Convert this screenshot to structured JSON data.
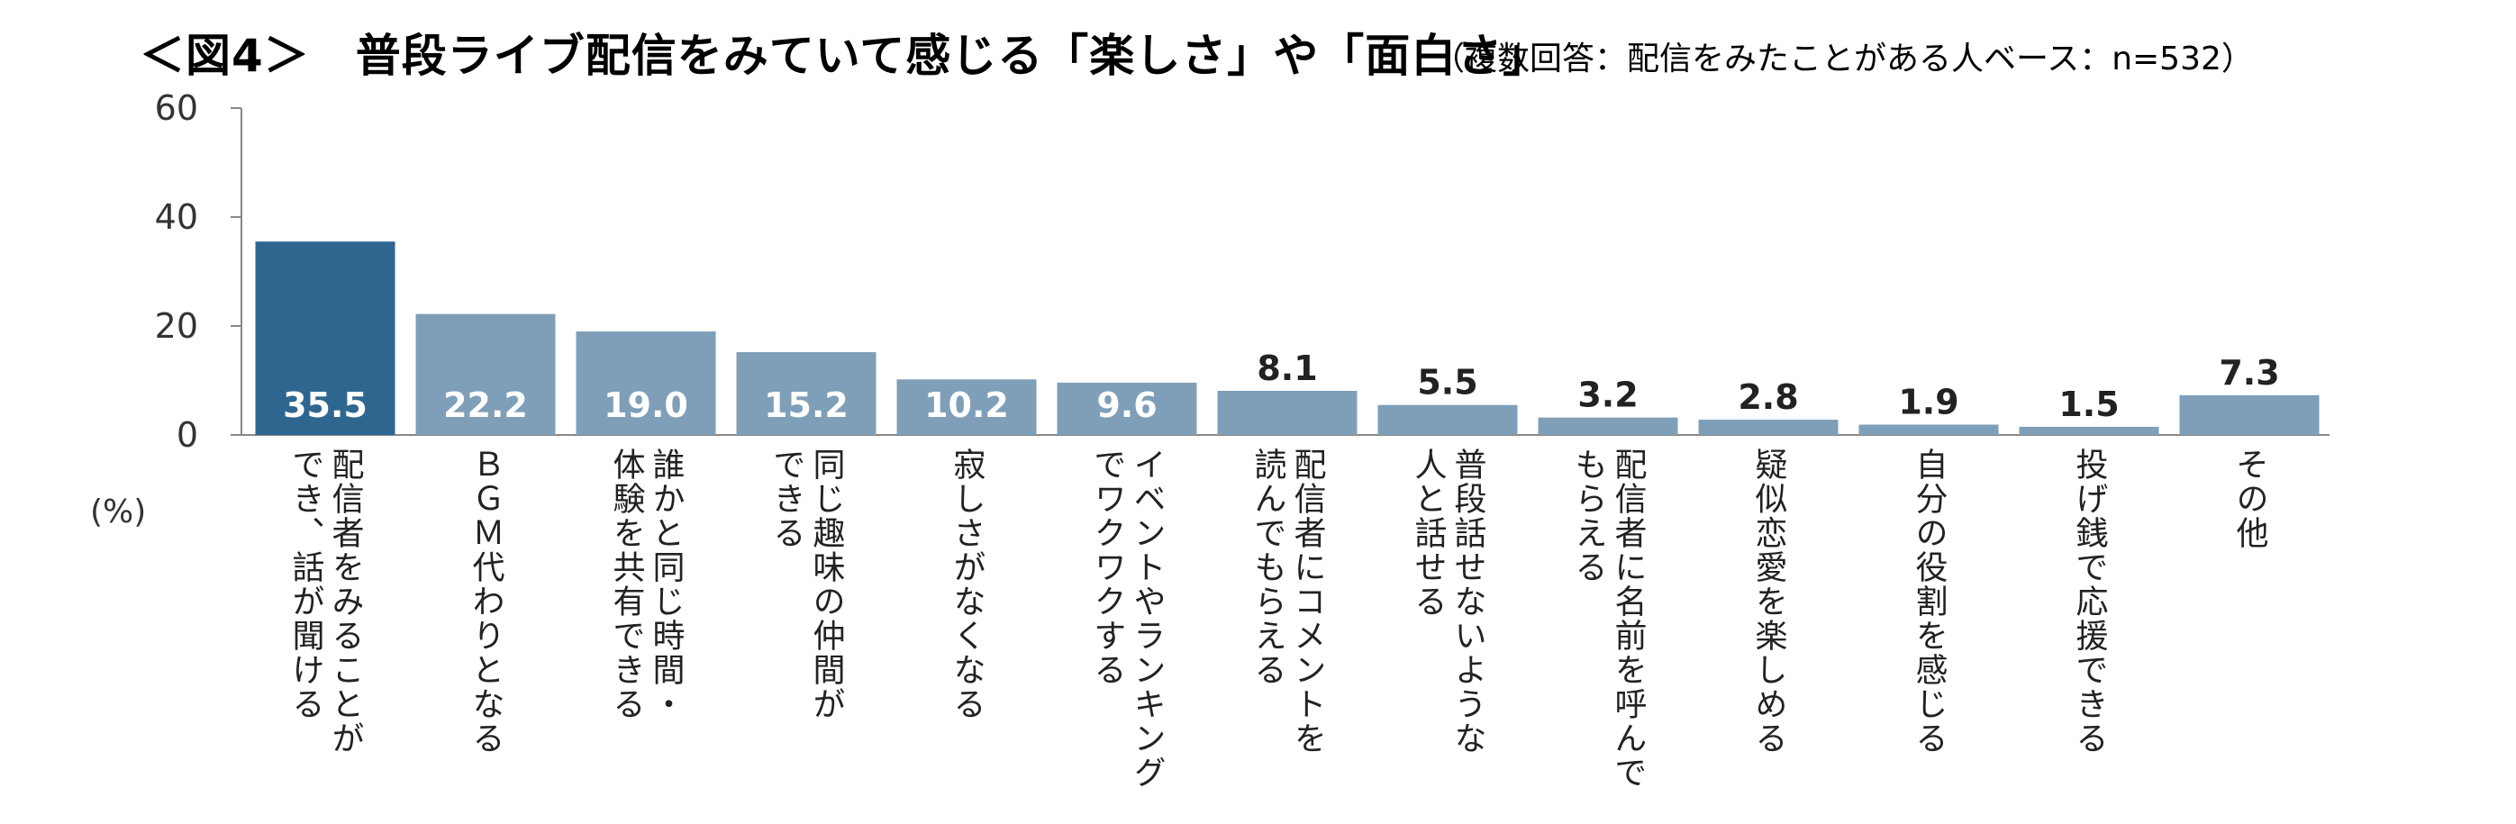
{
  "title": "＜図4＞　普段ライブ配信をみていて感じる「楽しさ」や「面白さ」",
  "subtitle": "（複数回答：配信をみたことがある人ベース：n=532）",
  "unit": "(%)",
  "colors": {
    "highlight": "#2f6690",
    "bar": "#7f9fb8",
    "label_light": "#ffffff",
    "label_dark": "#222222"
  },
  "chart_data": {
    "type": "bar",
    "title": "＜図4＞　普段ライブ配信をみていて感じる「楽しさ」や「面白さ」",
    "subtitle": "（複数回答：配信をみたことがある人ベース：n=532）",
    "ylabel": "(%)",
    "ylim": [
      0,
      60
    ],
    "yticks": [
      "0",
      "20",
      "40",
      "60"
    ],
    "grid": false,
    "categories": [
      [
        "配信者をみることが",
        "でき、話が聞ける"
      ],
      [
        "ＢＧＭ代わりとなる"
      ],
      [
        "誰かと同じ時間・",
        "体験を共有できる"
      ],
      [
        "同じ趣味の仲間が",
        "できる"
      ],
      [
        "寂しさがなくなる"
      ],
      [
        "イベントやランキング",
        "でワクワクする"
      ],
      [
        "配信者にコメントを",
        "読んでもらえる"
      ],
      [
        "普段話せないような",
        "人と話せる"
      ],
      [
        "配信者に名前を呼んで",
        "もらえる"
      ],
      [
        "疑似恋愛を楽しめる"
      ],
      [
        "自分の役割を感じる"
      ],
      [
        "投げ銭で応援できる"
      ],
      [
        "その他"
      ]
    ],
    "values": [
      35.5,
      22.2,
      19.0,
      15.2,
      10.2,
      9.6,
      8.1,
      5.5,
      3.2,
      2.8,
      1.9,
      1.5,
      7.3
    ],
    "value_labels": [
      "35.5",
      "22.2",
      "19.0",
      "15.2",
      "10.2",
      "9.6",
      "8.1",
      "5.5",
      "3.2",
      "2.8",
      "1.9",
      "1.5",
      "7.3"
    ]
  }
}
